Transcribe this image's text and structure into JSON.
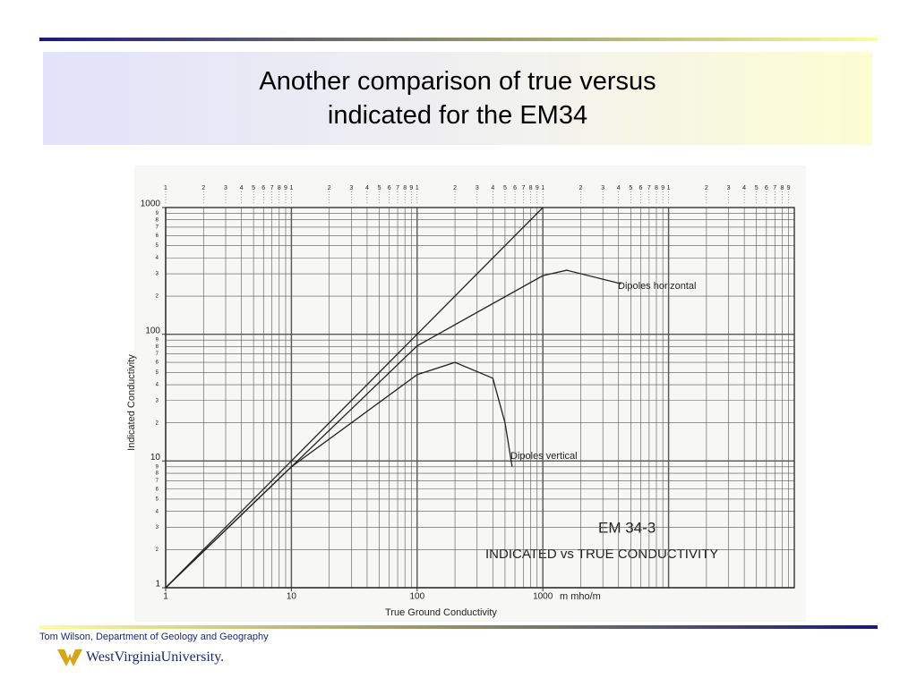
{
  "chart_data": {
    "type": "line",
    "title": "Another comparison of true versus indicated for the EM34",
    "x_label": "True Ground Conductivity",
    "x_unit": "m mho/m",
    "y_label": "Indicated Conductivity",
    "log_x": true,
    "log_y": true,
    "xlim": [
      1,
      100000
    ],
    "ylim": [
      1,
      1000
    ],
    "xticks": [
      1,
      10,
      100,
      1000
    ],
    "yticks": [
      1,
      10,
      100,
      1000
    ],
    "minor_ticks": [
      1,
      2,
      3,
      4,
      5,
      6,
      7,
      8,
      9
    ],
    "grid": true,
    "series": [
      {
        "name": "true",
        "color": "#222222",
        "x": [
          1,
          10,
          100,
          1000
        ],
        "values": [
          1,
          10,
          100,
          1000
        ]
      },
      {
        "name": "Dipoles horizontal",
        "color": "#222222",
        "x": [
          1,
          10,
          100,
          1000,
          1550,
          4200
        ],
        "values": [
          1,
          9,
          81,
          290,
          320,
          250
        ]
      },
      {
        "name": "Dipoles vertical",
        "color": "#222222",
        "x": [
          1,
          10,
          100,
          200,
          400,
          500,
          570
        ],
        "values": [
          1,
          9,
          48,
          60,
          45,
          20,
          9
        ]
      }
    ],
    "annotations": [
      "EM 34-3",
      "INDICATED vs TRUE CONDUCTIVITY"
    ]
  },
  "footer": {
    "credit": "Tom Wilson, Department of Geology and Geography",
    "logo": "WestVirginiaUniversity."
  }
}
